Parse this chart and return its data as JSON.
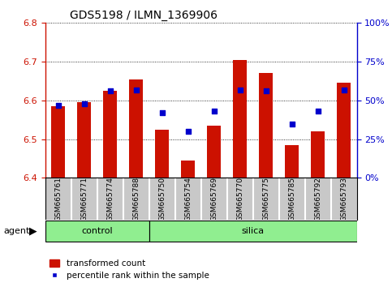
{
  "title": "GDS5198 / ILMN_1369906",
  "samples": [
    "GSM665761",
    "GSM665771",
    "GSM665774",
    "GSM665788",
    "GSM665750",
    "GSM665754",
    "GSM665769",
    "GSM665770",
    "GSM665775",
    "GSM665785",
    "GSM665792",
    "GSM665793"
  ],
  "groups": [
    "control",
    "control",
    "control",
    "control",
    "silica",
    "silica",
    "silica",
    "silica",
    "silica",
    "silica",
    "silica",
    "silica"
  ],
  "n_control": 4,
  "transformed_count": [
    6.585,
    6.595,
    6.625,
    6.655,
    6.525,
    6.445,
    6.535,
    6.705,
    6.67,
    6.485,
    6.52,
    6.645
  ],
  "percentile_rank": [
    47,
    48,
    56,
    57,
    42,
    30,
    43,
    57,
    56,
    35,
    43,
    57
  ],
  "ylim": [
    6.4,
    6.8
  ],
  "y_ticks_left": [
    6.4,
    6.5,
    6.6,
    6.7,
    6.8
  ],
  "y_ticks_right": [
    0,
    25,
    50,
    75,
    100
  ],
  "bar_color": "#CC1100",
  "dot_color": "#0000CC",
  "group_color": "#90EE90",
  "tick_bg_color": "#C8C8C8",
  "legend_bar": "transformed count",
  "legend_dot": "percentile rank within the sample",
  "agent_label": "agent"
}
